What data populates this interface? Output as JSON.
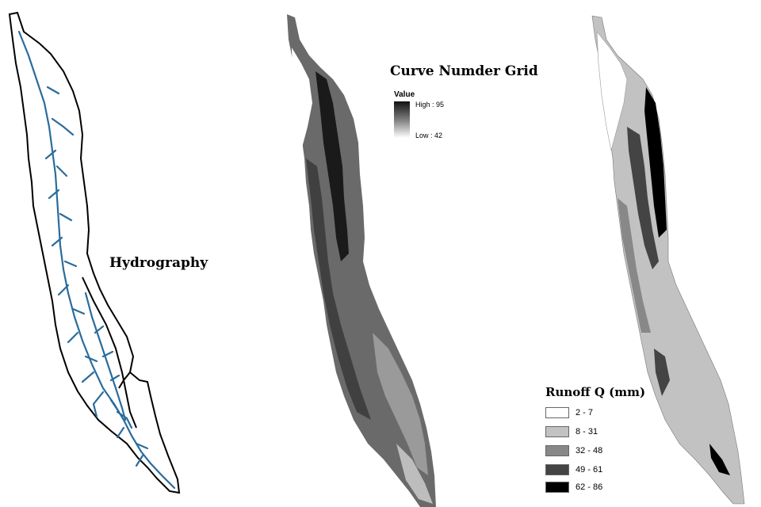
{
  "hydrography": {
    "label": "Hydrography",
    "stream_color": "#2a6c9c",
    "outline_color": "#000000"
  },
  "curve_number": {
    "title": "Curve Numder Grid",
    "legend_title": "Value",
    "high_label": "High : 95",
    "low_label": "Low : 42"
  },
  "runoff": {
    "title": "Runoff Q (mm)",
    "classes": [
      {
        "label": "2 - 7",
        "color": "#ffffff"
      },
      {
        "label": "8 - 31",
        "color": "#c2c2c2"
      },
      {
        "label": "32 - 48",
        "color": "#888888"
      },
      {
        "label": "49 - 61",
        "color": "#444444"
      },
      {
        "label": "62 - 86",
        "color": "#000000"
      }
    ]
  }
}
